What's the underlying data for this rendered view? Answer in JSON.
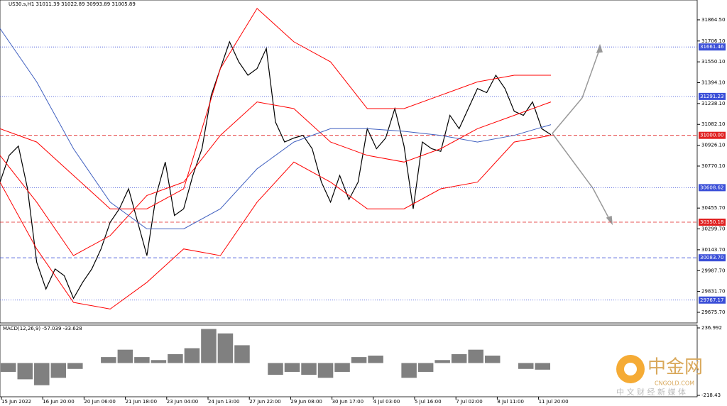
{
  "chart_data": [
    {
      "type": "line",
      "title": "US30.s,H1  31011.39 31022.89 30993.89 31005.89",
      "x_labels": [
        "15 Jun 2022",
        "16 Jun 20:00",
        "20 Jun 06:00",
        "21 Jun 18:00",
        "23 Jun 04:00",
        "24 Jun 13:00",
        "27 Jun 22:00",
        "29 Jun 08:00",
        "30 Jun 17:00",
        "4 Jul 03:00",
        "5 Jul 16:00",
        "7 Jul 02:00",
        "8 Jul 11:00",
        "11 Jul 20:00"
      ],
      "ylim": [
        29596,
        32013
      ],
      "yticks": [
        {
          "value": 31864.5,
          "label": "31864.50"
        },
        {
          "value": 31706.1,
          "label": "31706.10"
        },
        {
          "value": 31550.1,
          "label": "31550.10"
        },
        {
          "value": 31394.1,
          "label": "31394.10"
        },
        {
          "value": 31238.1,
          "label": "31238.10"
        },
        {
          "value": 31082.1,
          "label": "31082.10"
        },
        {
          "value": 30926.1,
          "label": "30926.10"
        },
        {
          "value": 30770.1,
          "label": "30770.10"
        },
        {
          "value": 30455.7,
          "label": "30455.70"
        },
        {
          "value": 30299.7,
          "label": "30299.70"
        },
        {
          "value": 30143.7,
          "label": "30143.70"
        },
        {
          "value": 29987.7,
          "label": "29987.70"
        },
        {
          "value": 29831.7,
          "label": "29831.70"
        },
        {
          "value": 29675.7,
          "label": "29675.70"
        }
      ],
      "levels": [
        {
          "value": 31661.46,
          "label": "31661.46",
          "color": "#3b4fd8",
          "dashed": false
        },
        {
          "value": 31291.23,
          "label": "31291.23",
          "color": "#3b4fd8",
          "dashed": false
        },
        {
          "value": 31000,
          "label": "31000.00",
          "color": "#e02020",
          "dashed": true
        },
        {
          "value": 30608.62,
          "label": "30608.62",
          "color": "#3b4fd8",
          "dashed": false
        },
        {
          "value": 30350.18,
          "label": "30350.18",
          "color": "#e02020",
          "dashed": true
        },
        {
          "value": 30083.7,
          "label": "30083.70",
          "color": "#3b4fd8",
          "dashed": true
        },
        {
          "value": 29767.17,
          "label": "29767.17",
          "color": "#3b4fd8",
          "dashed": false
        }
      ],
      "series": [
        {
          "color": "#000000",
          "values": [
            30650,
            30850,
            30920,
            30600,
            30050,
            29850,
            30000,
            29950,
            29780,
            29900,
            30000,
            30150,
            30350,
            30450,
            30600,
            30350,
            30100,
            30550,
            30800,
            30400,
            30450,
            30700,
            30900,
            31300,
            31500,
            31700,
            31550,
            31450,
            31500,
            31650,
            31100,
            30950,
            30980,
            31000,
            30900,
            30650,
            30500,
            30700,
            30520,
            30650,
            31050,
            30900,
            30980,
            31200,
            30920,
            30450,
            30950,
            30900,
            30880,
            31150,
            31050,
            31200,
            31350,
            31320,
            31450,
            31350,
            31180,
            31150,
            31250,
            31050,
            31005
          ]
        },
        {
          "color": "#ff0000",
          "values": [
            31050,
            30950,
            30700,
            30450,
            30450,
            30600,
            31500,
            31950,
            31700,
            31550,
            31200,
            31200,
            31300,
            31400,
            31450,
            31450
          ]
        },
        {
          "color": "#ff0000",
          "values": [
            30850,
            30500,
            30100,
            30250,
            30550,
            30650,
            31000,
            31250,
            31200,
            30950,
            30850,
            30800,
            30900,
            31050,
            31150,
            31250
          ]
        },
        {
          "color": "#ff0000",
          "values": [
            30650,
            30150,
            29750,
            29700,
            29900,
            30150,
            30100,
            30500,
            30800,
            30650,
            30450,
            30450,
            30600,
            30650,
            30950,
            31000
          ]
        },
        {
          "color": "#4060c0",
          "values": [
            31800,
            31400,
            30900,
            30500,
            30300,
            30300,
            30450,
            30750,
            30950,
            31050,
            31050,
            31030,
            31000,
            30950,
            31000,
            31080
          ]
        }
      ]
    },
    {
      "type": "bar",
      "title": "MACD(12,26,9) -57.039 -33.628",
      "yticks": [
        236.992,
        -218.43
      ],
      "color": "#808080",
      "values": [
        -60,
        -110,
        -150,
        -100,
        -40,
        0,
        40,
        90,
        40,
        20,
        60,
        100,
        230,
        200,
        120,
        0,
        -80,
        -60,
        -80,
        -100,
        -60,
        40,
        50,
        0,
        -100,
        -60,
        20,
        60,
        90,
        50,
        0,
        -40,
        -45
      ]
    }
  ],
  "watermark": {
    "brand": "中金网",
    "domain": "CNGOLD.COM",
    "tagline": "中 文 财 经 新 媒 体"
  }
}
